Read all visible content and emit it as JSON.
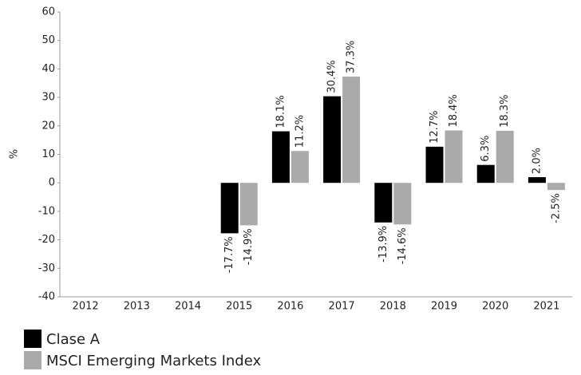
{
  "chart_data": {
    "type": "bar",
    "y_label": "%",
    "categories": [
      "2012",
      "2013",
      "2014",
      "2015",
      "2016",
      "2017",
      "2018",
      "2019",
      "2020",
      "2021"
    ],
    "series": [
      {
        "name": "Clase A",
        "color": "#000000",
        "values": [
          null,
          null,
          null,
          -17.7,
          18.1,
          30.4,
          -13.9,
          12.7,
          6.3,
          2.0
        ],
        "value_labels": [
          null,
          null,
          null,
          "-17.7%",
          "18.1%",
          "30.4%",
          "-13.9%",
          "12.7%",
          "6.3%",
          "2.0%"
        ]
      },
      {
        "name": "MSCI Emerging Markets Index",
        "color": "#aaaaaa",
        "values": [
          null,
          null,
          null,
          -14.9,
          11.2,
          37.3,
          -14.6,
          18.4,
          18.3,
          -2.5
        ],
        "value_labels": [
          null,
          null,
          null,
          "-14.9%",
          "11.2%",
          "37.3%",
          "-14.6%",
          "18.4%",
          "18.3%",
          "-2.5%"
        ]
      }
    ],
    "ylim": [
      -40,
      60
    ],
    "yticks": [
      -40,
      -30,
      -20,
      -10,
      0,
      10,
      20,
      30,
      40,
      50,
      60
    ],
    "grid": false,
    "legend": "bottom-left"
  }
}
